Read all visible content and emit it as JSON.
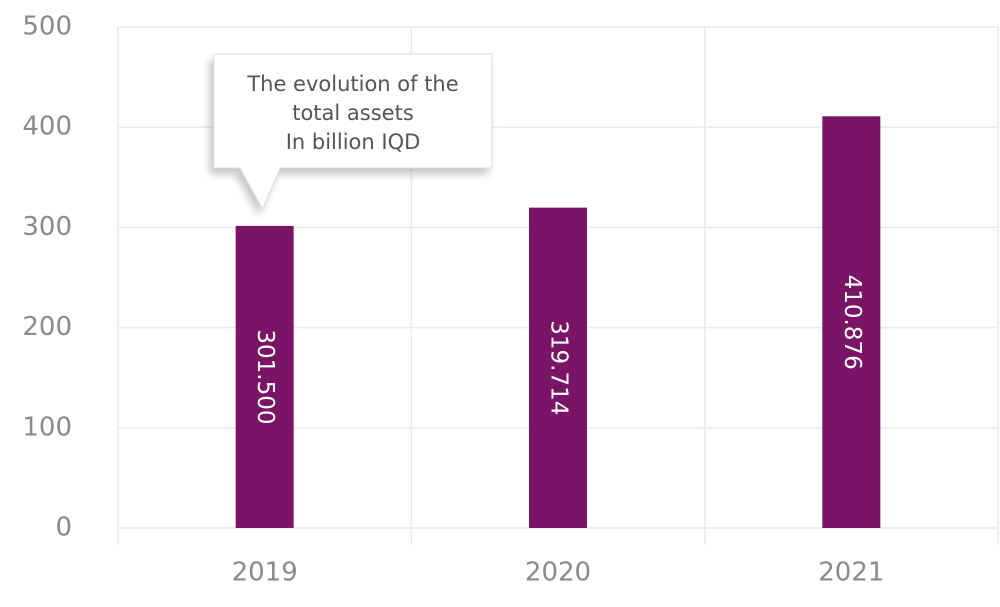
{
  "chart_data": {
    "type": "bar",
    "categories": [
      "2019",
      "2020",
      "2021"
    ],
    "values": [
      301.5,
      319.714,
      410.876
    ],
    "value_labels": [
      "301.500",
      "319.714",
      "410.876"
    ],
    "ylim": [
      0,
      500
    ],
    "yticks": [
      0,
      100,
      200,
      300,
      400,
      500
    ],
    "grid": true,
    "bar_color": "#7a1466",
    "annotation": {
      "lines": [
        "The evolution of the",
        "total assets",
        "In billion IQD"
      ],
      "points_to": "2019"
    }
  }
}
